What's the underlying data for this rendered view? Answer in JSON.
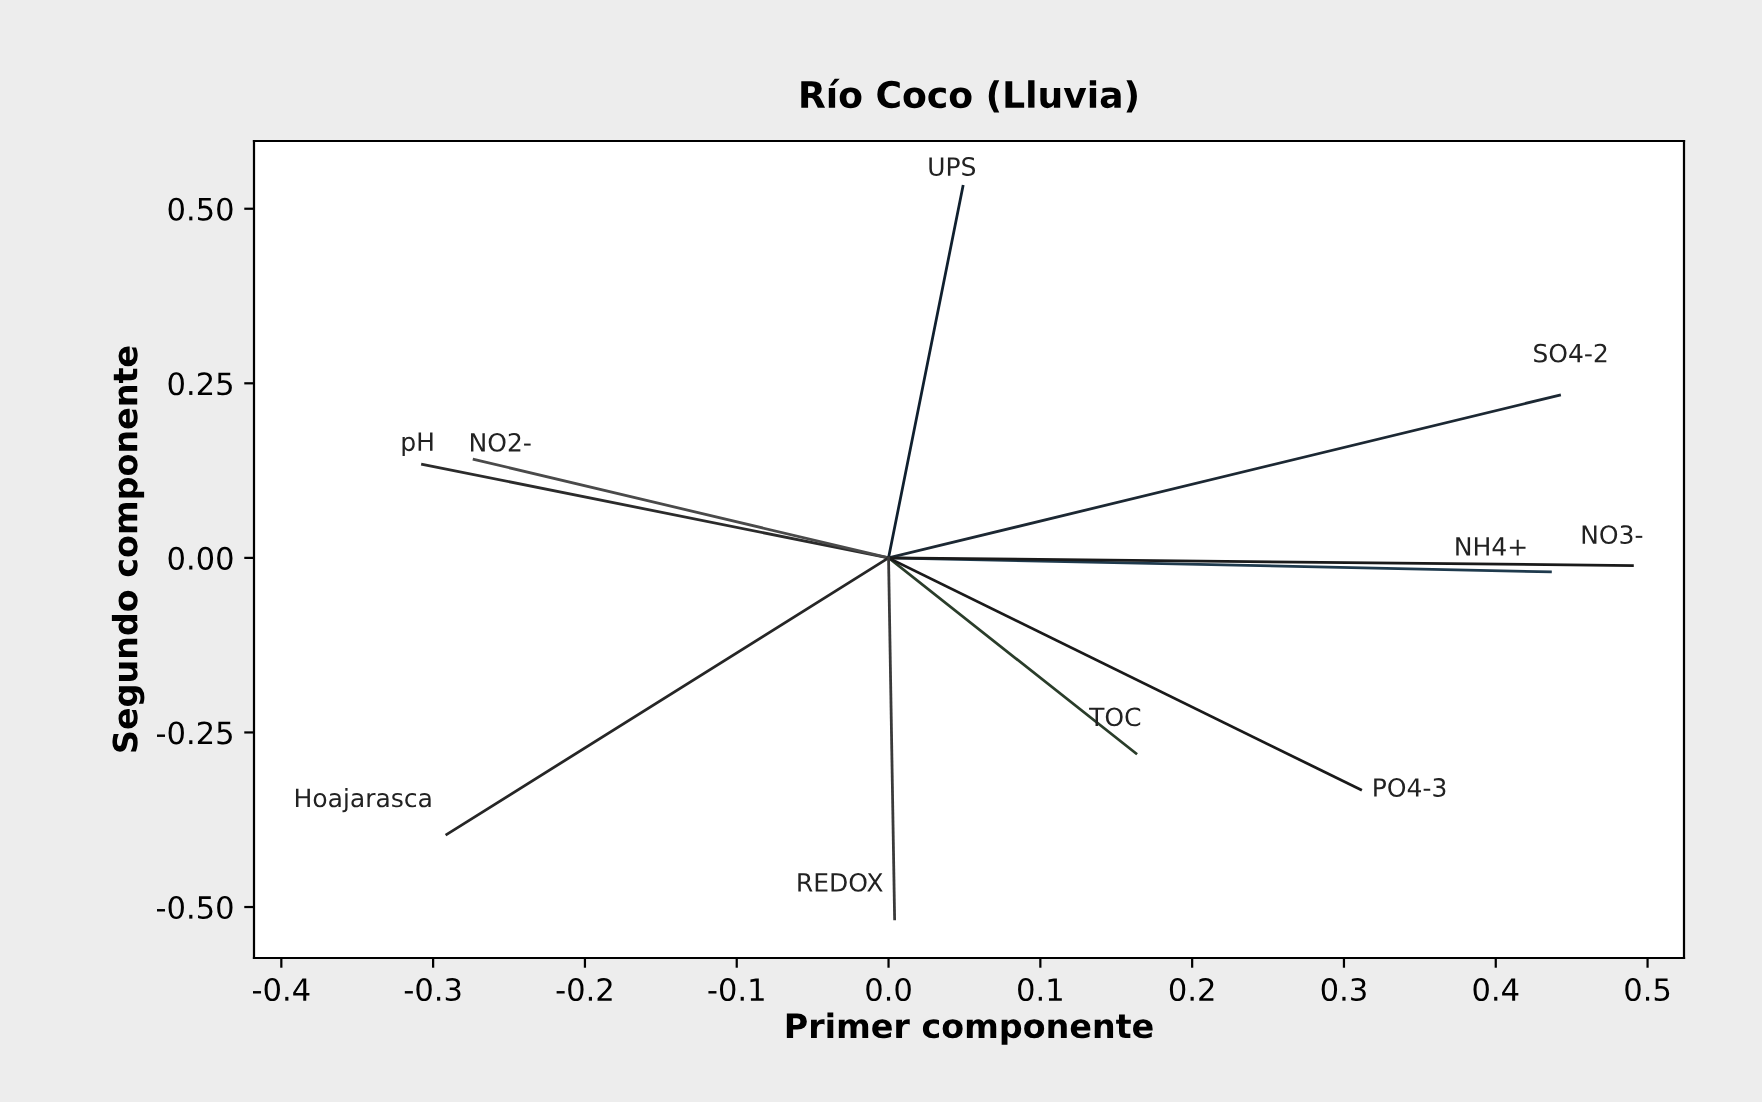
{
  "chart_data": {
    "type": "line",
    "title": "Río Coco (Lluvia)",
    "xlabel": "Primer componente",
    "ylabel": "Segundo componente",
    "xlim": [
      -0.418,
      0.524
    ],
    "ylim": [
      -0.573,
      0.597
    ],
    "xticks": [
      -0.4,
      -0.3,
      -0.2,
      -0.1,
      {
        "value": 0.0,
        "label": "0.0"
      },
      0.1,
      0.2,
      0.3,
      0.4,
      0.5
    ],
    "yticks": [
      {
        "value": -0.5,
        "label": "-0.50"
      },
      {
        "value": -0.25,
        "label": "-0.25"
      },
      {
        "value": 0.0,
        "label": "0.00"
      },
      {
        "value": 0.25,
        "label": "0.25"
      },
      {
        "value": 0.5,
        "label": "0.50"
      }
    ],
    "grid": false,
    "marker": "none",
    "line_style": "solid",
    "series": [
      {
        "name": "UPS",
        "color": "#10202e",
        "x": [
          0,
          0.049
        ],
        "values": [
          0,
          0.532
        ]
      },
      {
        "name": "pH",
        "color": "#2b2b2b",
        "x": [
          0,
          -0.307
        ],
        "values": [
          0,
          0.134
        ]
      },
      {
        "name": "NO2-",
        "color": "#4a4a4a",
        "x": [
          0,
          -0.273
        ],
        "values": [
          0,
          0.141
        ]
      },
      {
        "name": "SO4-2",
        "color": "#1c2833",
        "x": [
          0,
          0.442
        ],
        "values": [
          0,
          0.233
        ]
      },
      {
        "name": "NH4+",
        "color": "#1f3a4d",
        "x": [
          0,
          0.436
        ],
        "values": [
          0,
          -0.02
        ]
      },
      {
        "name": "NO3-",
        "color": "#1a1a1a",
        "x": [
          0,
          0.49
        ],
        "values": [
          0,
          -0.011
        ]
      },
      {
        "name": "TOC",
        "color": "#2a3d2a",
        "x": [
          0,
          0.163
        ],
        "values": [
          0,
          -0.28
        ]
      },
      {
        "name": "PO4-3",
        "color": "#1a1a1a",
        "x": [
          0,
          0.311
        ],
        "values": [
          0,
          -0.332
        ]
      },
      {
        "name": "Hoajarasca",
        "color": "#262626",
        "x": [
          0,
          -0.291
        ],
        "values": [
          0,
          -0.396
        ]
      },
      {
        "name": "REDOX",
        "color": "#3a3a3a",
        "x": [
          0,
          0.004
        ],
        "values": [
          0,
          -0.517
        ]
      }
    ]
  }
}
